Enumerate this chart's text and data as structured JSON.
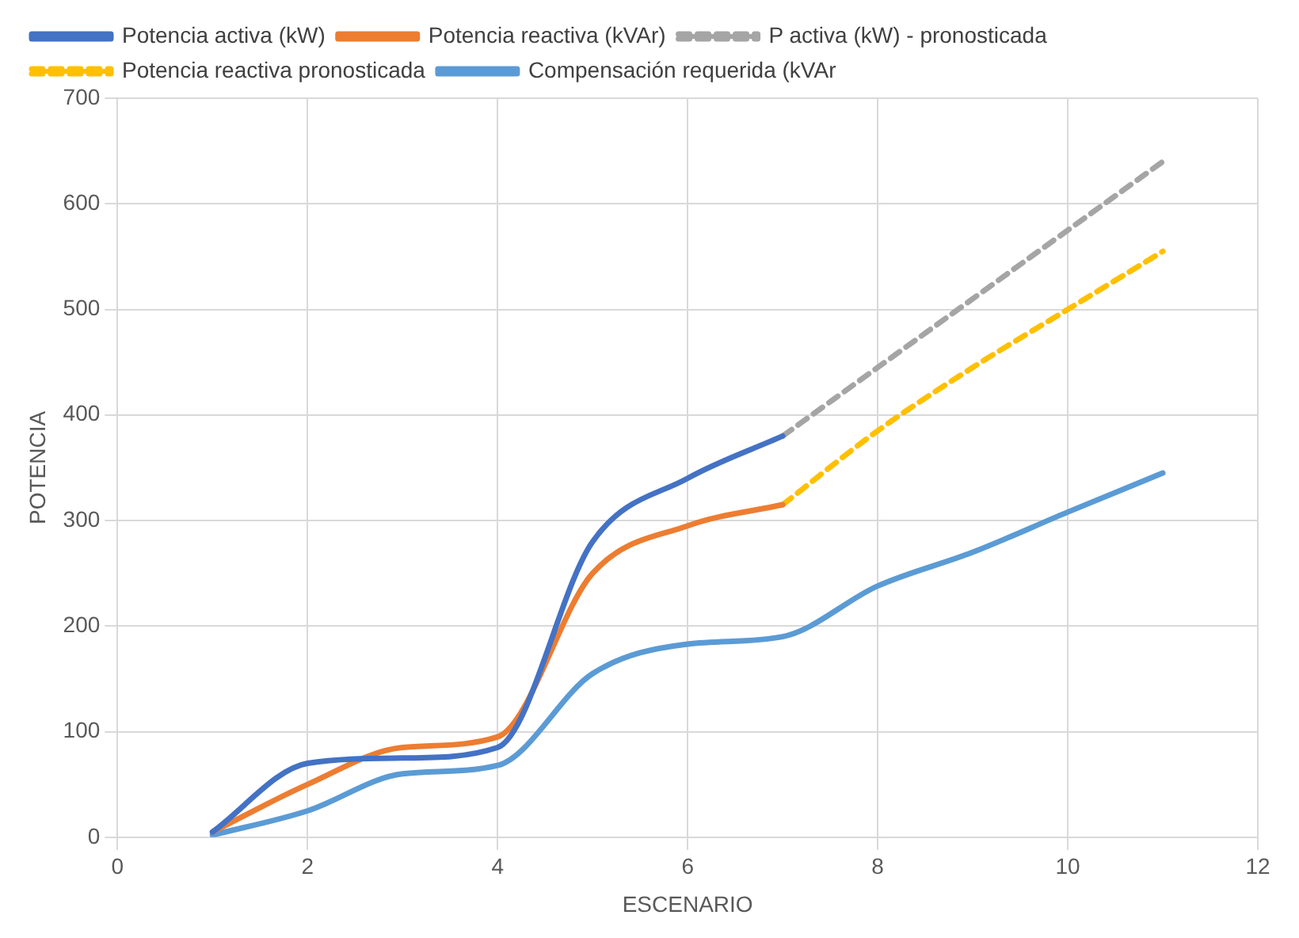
{
  "chart_data": {
    "type": "line",
    "xlabel": "ESCENARIO",
    "ylabel": "POTENCIA",
    "xlim": [
      0,
      12
    ],
    "xticks": [
      0,
      2,
      4,
      6,
      8,
      10,
      12
    ],
    "ylim": [
      0,
      700
    ],
    "yticks": [
      0,
      100,
      200,
      300,
      400,
      500,
      600,
      700
    ],
    "grid": true,
    "legend": "top",
    "marker": "none",
    "series": [
      {
        "name": "Potencia activa (kW)",
        "color": "#4472c4",
        "line_style": "solid",
        "x": [
          1,
          2,
          3,
          4,
          5,
          6,
          7
        ],
        "values": [
          5,
          70,
          75,
          85,
          280,
          340,
          380
        ]
      },
      {
        "name": "Potencia reactiva (kVAr)",
        "color": "#ed7d31",
        "line_style": "solid",
        "x": [
          1,
          2,
          3,
          4,
          5,
          6,
          7
        ],
        "values": [
          5,
          50,
          85,
          95,
          250,
          295,
          315
        ]
      },
      {
        "name": "P activa (kW) - pronosticada",
        "color": "#a5a5a5",
        "line_style": "dashed",
        "x": [
          7,
          8,
          9,
          10,
          11
        ],
        "values": [
          380,
          445,
          510,
          575,
          640
        ]
      },
      {
        "name": "Potencia reactiva pronosticada",
        "color": "#ffc000",
        "line_style": "dashed",
        "x": [
          7,
          8,
          9,
          10,
          11
        ],
        "values": [
          315,
          385,
          445,
          500,
          555
        ]
      },
      {
        "name": "Compensación requerida (kVAr",
        "color": "#5b9bd5",
        "line_style": "solid",
        "x": [
          1,
          2,
          3,
          4,
          5,
          6,
          7,
          8,
          9,
          10,
          11
        ],
        "values": [
          2,
          25,
          60,
          68,
          155,
          183,
          190,
          238,
          270,
          308,
          345
        ]
      }
    ]
  }
}
